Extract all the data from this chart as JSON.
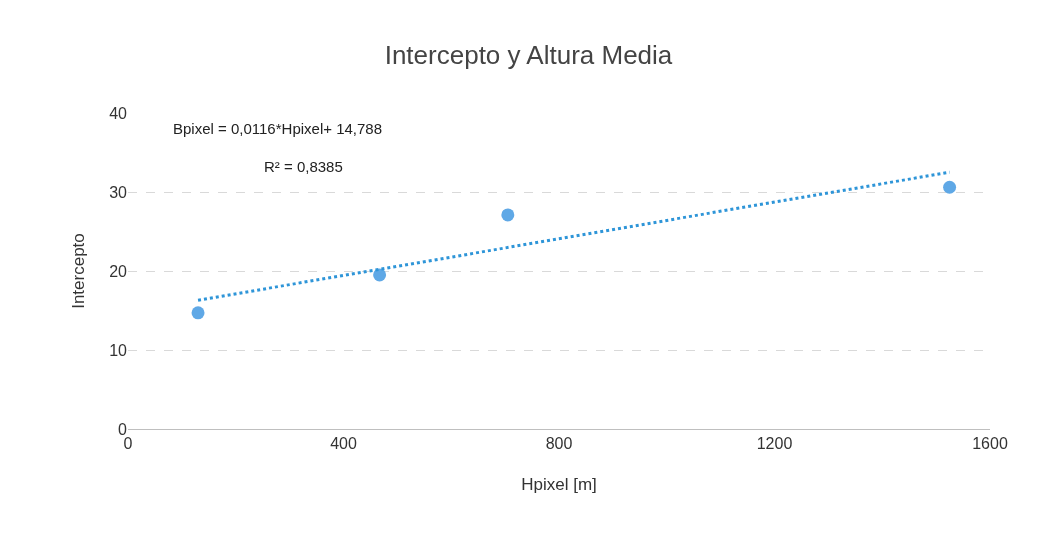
{
  "chart_data": {
    "type": "scatter",
    "title": "Intercepto y Altura Media",
    "xlabel": "Hpixel [m]",
    "ylabel": "Intercepto",
    "xlim": [
      0,
      1600
    ],
    "xticks": [
      0,
      400,
      800,
      1200,
      1600
    ],
    "ylim": [
      0,
      40
    ],
    "yticks": [
      0,
      10,
      20,
      30,
      40
    ],
    "grid": "y",
    "marker": "circle",
    "series": [
      {
        "color": "#5fa8e6",
        "x": [
          130,
          467,
          705,
          1525
        ],
        "values": [
          14.7,
          19.5,
          27.1,
          30.6
        ]
      },
      {
        "type": "line",
        "color": "#2e95d8",
        "line_style": "dotted",
        "marker": "none",
        "x": [
          130,
          1525
        ],
        "values": [
          16.3,
          32.5
        ]
      }
    ],
    "annotations": [
      "Bpixel = 0,0116*Hpixel+ 14,788",
      "R² = 0,8385"
    ]
  }
}
